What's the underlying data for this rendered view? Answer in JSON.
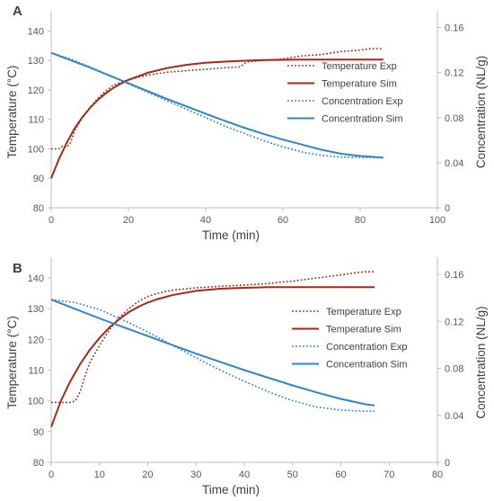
{
  "colors": {
    "temperature": "#a32a15",
    "concentration": "#2f86c9",
    "axis": "#bfbfbf",
    "text": "#404040"
  },
  "chart_data": [
    {
      "type": "line",
      "panel_label": "A",
      "xlabel": "Time (min)",
      "ylabel_left": "Temperature (°C)",
      "ylabel_right": "Concentration (NL/g)",
      "xlim": [
        0,
        100
      ],
      "xticks": [
        0,
        20,
        40,
        60,
        80,
        100
      ],
      "ylim_left": [
        80,
        145
      ],
      "yticks_left": [
        80,
        90,
        100,
        110,
        120,
        130,
        140
      ],
      "ylim_right": [
        0,
        0.17
      ],
      "yticks_right": [
        0,
        0.04,
        0.08,
        0.12,
        0.16
      ],
      "ytick_labels_right": [
        "0",
        "0.04",
        "0.08",
        "0.12",
        "0.16"
      ],
      "legend_position": "center-right",
      "grid": false,
      "series": [
        {
          "name": "Temperature Exp",
          "axis": "left",
          "style": "dotted",
          "color": "#a32a15",
          "x": [
            0,
            2,
            3,
            4,
            5,
            6,
            8,
            10,
            12,
            14,
            16,
            18,
            20,
            25,
            30,
            35,
            40,
            45,
            49,
            50,
            51,
            55,
            60,
            65,
            70,
            75,
            80,
            83,
            86
          ],
          "y": [
            100,
            100,
            101,
            100.5,
            102,
            106,
            110.5,
            114,
            117,
            119.5,
            121.5,
            122.5,
            123.5,
            125,
            126,
            126.5,
            127,
            127.5,
            127.8,
            129,
            129.5,
            130,
            130.5,
            131.5,
            132,
            133,
            133.5,
            134,
            134
          ]
        },
        {
          "name": "Temperature Sim",
          "axis": "left",
          "style": "solid",
          "color": "#a32a15",
          "x": [
            0,
            2,
            4,
            6,
            8,
            10,
            12,
            14,
            16,
            18,
            20,
            25,
            30,
            35,
            40,
            45,
            50,
            55,
            60,
            65,
            70,
            75,
            80,
            86
          ],
          "y": [
            90,
            96.5,
            102,
            106.8,
            110.6,
            113.8,
            116.5,
            118.7,
            120.6,
            122.1,
            123.4,
            125.8,
            127.4,
            128.5,
            129.2,
            129.6,
            129.9,
            130.1,
            130.2,
            130.3,
            130.3,
            130.3,
            130.3,
            130.3
          ]
        },
        {
          "name": "Concentration Exp",
          "axis": "right",
          "style": "dotted",
          "color": "#2f86c9",
          "x": [
            0,
            5,
            10,
            15,
            20,
            25,
            30,
            35,
            40,
            45,
            50,
            55,
            60,
            65,
            70,
            75,
            80,
            86
          ],
          "y": [
            0.1375,
            0.132,
            0.125,
            0.1175,
            0.11,
            0.1025,
            0.095,
            0.0875,
            0.08,
            0.0725,
            0.066,
            0.0595,
            0.054,
            0.0495,
            0.0465,
            0.045,
            0.0448,
            0.0445
          ]
        },
        {
          "name": "Concentration Sim",
          "axis": "right",
          "style": "solid",
          "color": "#2f86c9",
          "x": [
            0,
            5,
            10,
            15,
            20,
            25,
            30,
            35,
            40,
            45,
            50,
            55,
            60,
            65,
            70,
            75,
            80,
            86
          ],
          "y": [
            0.1375,
            0.131,
            0.1245,
            0.1175,
            0.1105,
            0.1035,
            0.0965,
            0.09,
            0.0835,
            0.077,
            0.071,
            0.0655,
            0.0605,
            0.056,
            0.0515,
            0.048,
            0.046,
            0.0445
          ]
        }
      ]
    },
    {
      "type": "line",
      "panel_label": "B",
      "xlabel": "Time (min)",
      "ylabel_left": "Temperature (°C)",
      "ylabel_right": "Concentration (NL/g)",
      "xlim": [
        0,
        80
      ],
      "xticks": [
        0,
        10,
        20,
        30,
        40,
        50,
        60,
        70,
        80
      ],
      "ylim_left": [
        80,
        145
      ],
      "yticks_left": [
        80,
        90,
        100,
        110,
        120,
        130,
        140
      ],
      "ylim_right": [
        0,
        0.17
      ],
      "yticks_right": [
        0,
        0.04,
        0.08,
        0.12,
        0.16
      ],
      "ytick_labels_right": [
        "0",
        "0.04",
        "0.08",
        "0.12",
        "0.16"
      ],
      "legend_position": "center-right",
      "grid": false,
      "series": [
        {
          "name": "Temperature Exp",
          "axis": "left",
          "style": "dotted",
          "color": "#a32a15",
          "x": [
            0,
            2,
            4,
            5,
            6,
            7,
            8,
            10,
            12,
            14,
            16,
            18,
            20,
            22,
            25,
            30,
            35,
            40,
            45,
            50,
            55,
            60,
            63,
            65,
            67
          ],
          "y": [
            99.5,
            99.5,
            99.5,
            100,
            103,
            108,
            112.5,
            118,
            123,
            127,
            130,
            132.3,
            134,
            135,
            136,
            136.8,
            137.3,
            137.7,
            138.2,
            139,
            140,
            141,
            141.7,
            142,
            142
          ]
        },
        {
          "name": "Temperature Sim",
          "axis": "left",
          "style": "solid",
          "color": "#a32a15",
          "x": [
            0,
            2,
            4,
            6,
            8,
            10,
            12,
            14,
            16,
            18,
            20,
            22,
            25,
            30,
            35,
            40,
            45,
            50,
            55,
            60,
            67
          ],
          "y": [
            91.5,
            100,
            106.5,
            112,
            116.6,
            120.5,
            123.8,
            126.5,
            128.8,
            130.6,
            132,
            133.1,
            134.4,
            135.8,
            136.5,
            136.8,
            137,
            137,
            137,
            137,
            137
          ]
        },
        {
          "name": "Concentration Exp",
          "axis": "right",
          "style": "dotted",
          "color": "#2f86c9",
          "x": [
            0,
            5,
            10,
            15,
            20,
            25,
            30,
            35,
            40,
            45,
            50,
            55,
            60,
            65,
            67
          ],
          "y": [
            0.1385,
            0.136,
            0.13,
            0.121,
            0.111,
            0.1,
            0.089,
            0.0785,
            0.069,
            0.06,
            0.0525,
            0.047,
            0.0445,
            0.0435,
            0.0435
          ]
        },
        {
          "name": "Concentration Sim",
          "axis": "right",
          "style": "solid",
          "color": "#2f86c9",
          "x": [
            0,
            5,
            10,
            15,
            20,
            25,
            30,
            35,
            40,
            45,
            50,
            55,
            60,
            65,
            67
          ],
          "y": [
            0.1385,
            0.1305,
            0.1225,
            0.115,
            0.1075,
            0.1,
            0.0925,
            0.0855,
            0.0785,
            0.072,
            0.0655,
            0.0595,
            0.054,
            0.0495,
            0.0485
          ]
        }
      ]
    }
  ]
}
